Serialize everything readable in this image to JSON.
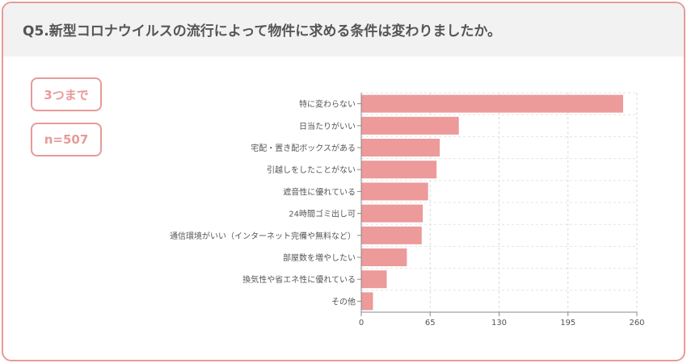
{
  "title": "Q5.新型コロナウイルスの流行によって物件に求める条件は変わりましたか。",
  "badges": {
    "limit": "3つまで",
    "n": "n=507"
  },
  "colors": {
    "bar": "#ec9a9a",
    "border": "#e89a9a",
    "header_bg": "#f2f2f2"
  },
  "chart_data": {
    "type": "bar",
    "orientation": "horizontal",
    "categories": [
      "特に変わらない",
      "日当たりがいい",
      "宅配・置き配ボックスがある",
      "引越しをしたことがない",
      "遮音性に優れている",
      "24時間ゴミ出し可",
      "通信環境がいい（インターネット完備や無料など）",
      "部屋数を増やしたい",
      "換気性や省エネ性に優れている",
      "その他"
    ],
    "values": [
      247,
      92,
      74,
      71,
      63,
      58,
      57,
      43,
      24,
      11
    ],
    "xlim": [
      0,
      260
    ],
    "xticks": [
      0,
      65,
      130,
      195,
      260
    ],
    "grid": true
  }
}
